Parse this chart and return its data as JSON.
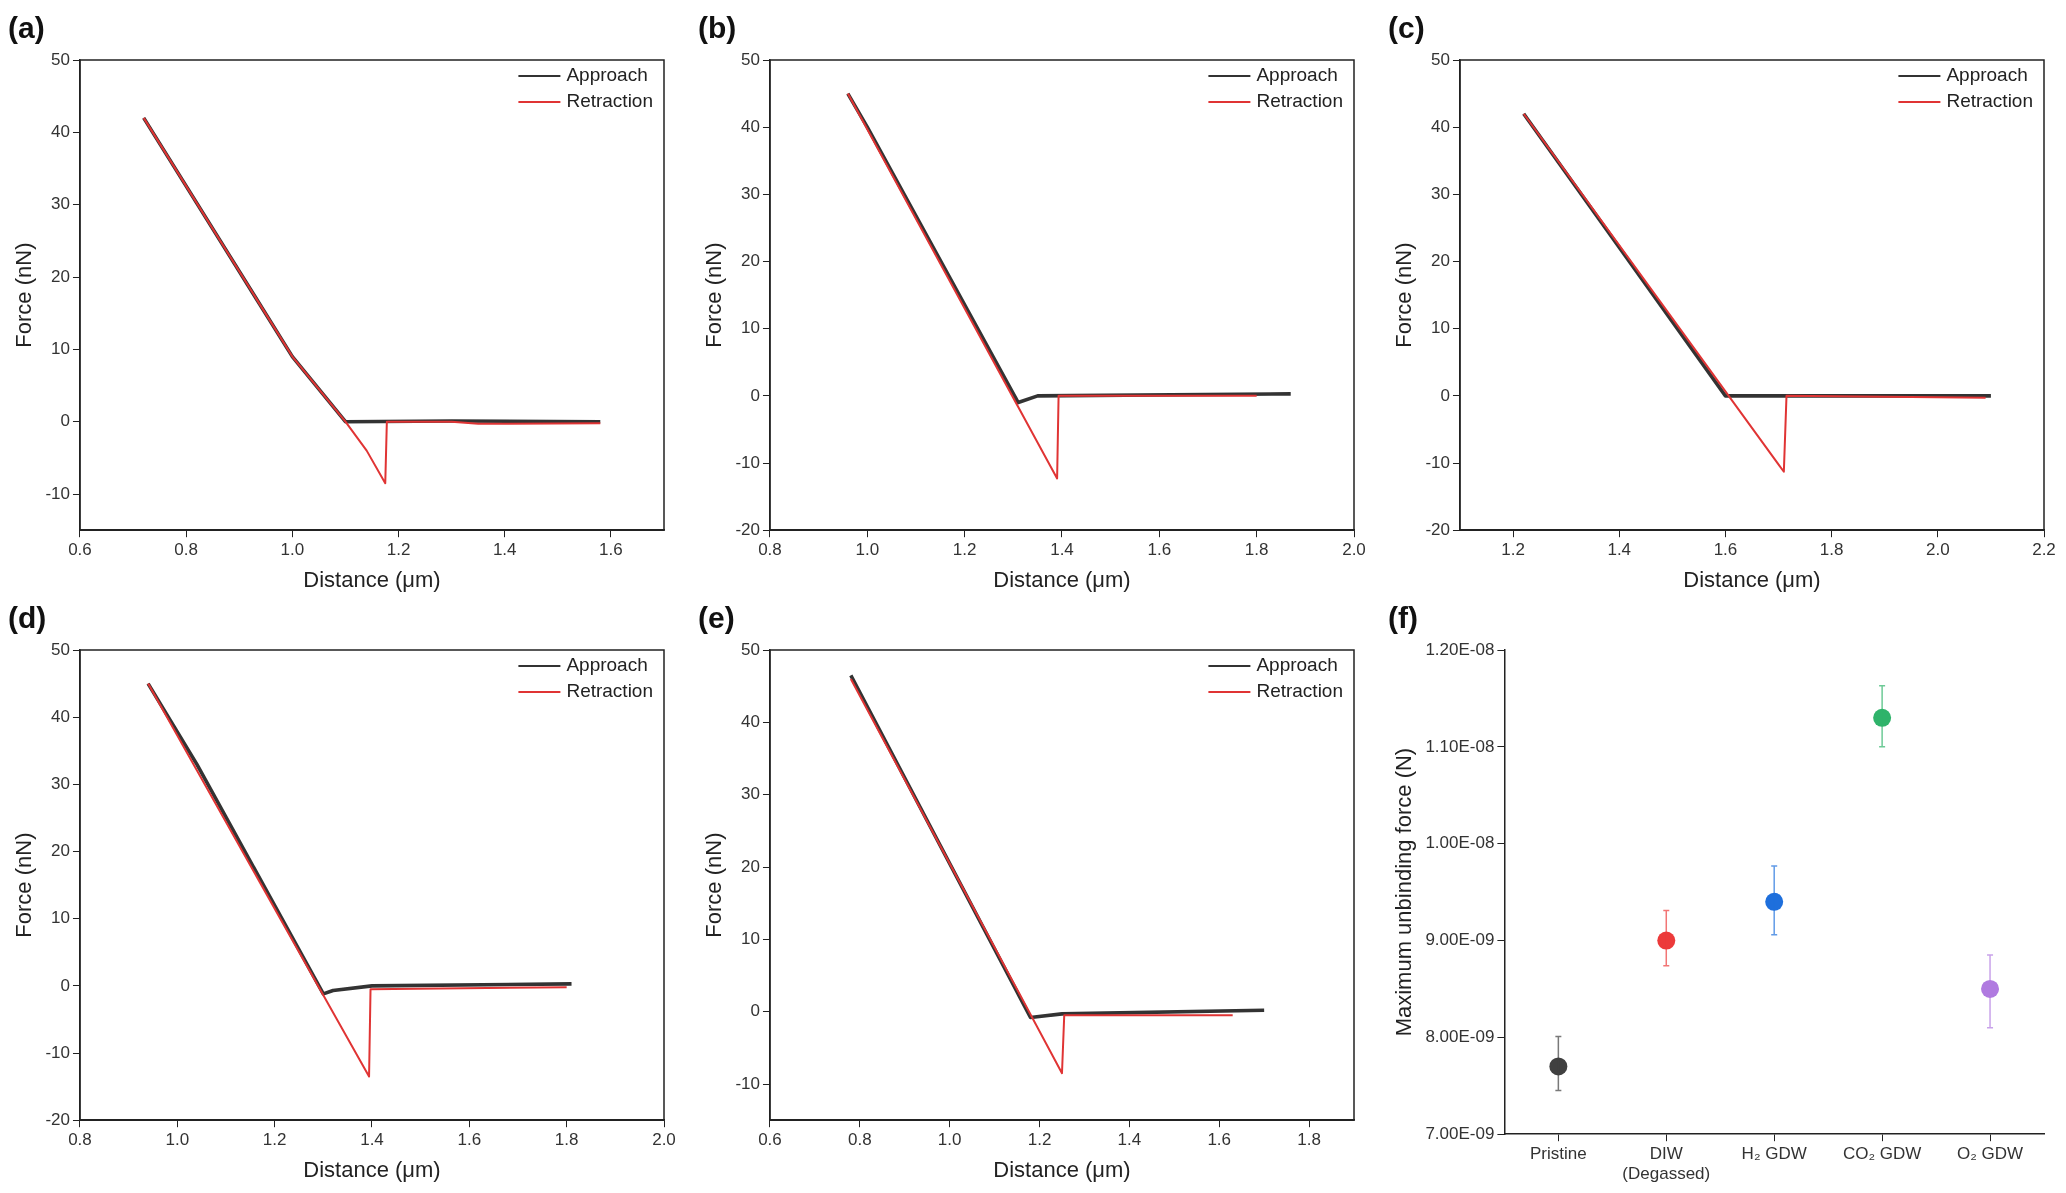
{
  "chart_data": [
    {
      "type": "line",
      "title": "(a)",
      "xlabel": "Distance (μm)",
      "ylabel": "Force (nN)",
      "xlim": [
        0.6,
        1.7
      ],
      "xticks": [
        0.6,
        {
          "value": 0.8,
          "label": "0.8"
        },
        {
          "value": 1,
          "label": "1.0"
        },
        {
          "value": 1.2,
          "label": "1.2"
        },
        {
          "value": 1.4,
          "label": "1.4"
        },
        {
          "value": 1.6,
          "label": "1.6"
        }
      ],
      "ylim": [
        -15,
        50
      ],
      "yticks": [
        -10,
        0,
        10,
        20,
        30,
        40,
        50
      ],
      "legend": "top right",
      "marker": "none",
      "line_style": "solid",
      "series": [
        {
          "name": "Approach",
          "color": "#333333",
          "x": [
            0.72,
            1.0,
            1.1,
            1.3,
            1.58
          ],
          "values": [
            42,
            9,
            0,
            0.1,
            0
          ]
        },
        {
          "name": "Retraction",
          "color": "#e03434",
          "x": [
            0.72,
            1.0,
            1.1,
            1.14,
            1.175,
            1.178,
            1.3,
            1.35,
            1.58
          ],
          "values": [
            42,
            9,
            0,
            -4,
            -8.5,
            0,
            0,
            -0.3,
            -0.2
          ]
        }
      ]
    },
    {
      "type": "line",
      "title": "(b)",
      "xlabel": "Distance (μm)",
      "ylabel": "Force (nN)",
      "xlim": [
        0.8,
        2.0
      ],
      "xticks": [
        0.8,
        {
          "value": 1,
          "label": "1.0"
        },
        1.2,
        1.4,
        1.6,
        1.8,
        {
          "value": 2,
          "label": "2.0"
        }
      ],
      "ylim": [
        -20,
        50
      ],
      "yticks": [
        -20,
        -10,
        0,
        10,
        20,
        30,
        40,
        50
      ],
      "legend": "top right",
      "marker": "none",
      "line_style": "solid",
      "series": [
        {
          "name": "Approach",
          "color": "#333333",
          "x": [
            0.96,
            1.0,
            1.31,
            1.35,
            1.87
          ],
          "values": [
            45,
            40,
            -1,
            0,
            0.3
          ]
        },
        {
          "name": "Retraction",
          "color": "#e03434",
          "x": [
            0.96,
            1.39,
            1.393,
            1.8
          ],
          "values": [
            45,
            -12.3,
            0,
            0
          ]
        }
      ]
    },
    {
      "type": "line",
      "title": "(c)",
      "xlabel": "Distance (μm)",
      "ylabel": "Force (nN)",
      "xlim": [
        1.1,
        2.2
      ],
      "xticks": [
        1.2,
        1.4,
        1.6,
        1.8,
        {
          "value": 2,
          "label": "2.0"
        },
        2.2
      ],
      "ylim": [
        -20,
        50
      ],
      "yticks": [
        -20,
        -10,
        0,
        10,
        20,
        30,
        40,
        50
      ],
      "legend": "top right",
      "marker": "none",
      "line_style": "solid",
      "series": [
        {
          "name": "Approach",
          "color": "#333333",
          "x": [
            1.22,
            1.6,
            2.1
          ],
          "values": [
            42,
            0,
            0
          ]
        },
        {
          "name": "Retraction",
          "color": "#e03434",
          "x": [
            1.22,
            1.71,
            1.715,
            2.09
          ],
          "values": [
            42,
            -11.3,
            0,
            -0.3
          ]
        }
      ]
    },
    {
      "type": "line",
      "title": "(d)",
      "xlabel": "Distance (μm)",
      "ylabel": "Force (nN)",
      "xlim": [
        0.8,
        2.0
      ],
      "xticks": [
        0.8,
        {
          "value": 1,
          "label": "1.0"
        },
        1.2,
        1.4,
        1.6,
        1.8,
        {
          "value": 2,
          "label": "2.0"
        }
      ],
      "ylim": [
        -20,
        50
      ],
      "yticks": [
        -20,
        -10,
        0,
        10,
        20,
        30,
        40,
        50
      ],
      "legend": "top right",
      "marker": "none",
      "line_style": "solid",
      "series": [
        {
          "name": "Approach",
          "color": "#333333",
          "x": [
            0.94,
            1.04,
            1.3,
            1.32,
            1.4,
            1.81
          ],
          "values": [
            45,
            33,
            -1.2,
            -0.7,
            0,
            0.3
          ]
        },
        {
          "name": "Retraction",
          "color": "#e03434",
          "x": [
            0.94,
            1.394,
            1.397,
            1.8
          ],
          "values": [
            45,
            -13.5,
            -0.5,
            -0.2
          ]
        }
      ]
    },
    {
      "type": "line",
      "title": "(e)",
      "xlabel": "Distance (μm)",
      "ylabel": "Force (nN)",
      "xlim": [
        0.6,
        1.9
      ],
      "xticks": [
        0.6,
        0.8,
        {
          "value": 1,
          "label": "1.0"
        },
        1.2,
        1.4,
        1.6,
        1.8
      ],
      "ylim": [
        -15,
        50
      ],
      "yticks": [
        -10,
        0,
        10,
        20,
        30,
        40,
        50
      ],
      "legend": "top right",
      "marker": "none",
      "line_style": "solid",
      "series": [
        {
          "name": "Approach",
          "color": "#333333",
          "x": [
            0.78,
            1.18,
            1.25,
            1.7
          ],
          "values": [
            46.5,
            -0.8,
            -0.3,
            0.2
          ]
        },
        {
          "name": "Retraction",
          "color": "#e03434",
          "x": [
            0.78,
            1.25,
            1.255,
            1.63
          ],
          "values": [
            46,
            -8.5,
            -0.5,
            -0.5
          ]
        }
      ]
    },
    {
      "type": "scatter",
      "title": "(f)",
      "ylabel": "Maximum unbinding force (N)",
      "categories": [
        "Pristine",
        "DIW\n(Degassed)",
        "H₂ GDW",
        "CO₂ GDW",
        "O₂ GDW"
      ],
      "ylim": [
        7e-09,
        1.2e-08
      ],
      "yticks": [
        {
          "value": 7e-09,
          "label": "7.00E-09"
        },
        {
          "value": 8e-09,
          "label": "8.00E-09"
        },
        {
          "value": 9e-09,
          "label": "9.00E-09"
        },
        {
          "value": 1e-08,
          "label": "1.00E-08"
        },
        {
          "value": 1.1e-08,
          "label": "1.10E-08"
        },
        {
          "value": 1.2e-08,
          "label": "1.20E-08"
        }
      ],
      "marker": "circle",
      "series": [
        {
          "colors": [
            "#404040",
            "#ec3a3a",
            "#1e6fdc",
            "#2fb36a",
            "#b07ae0"
          ],
          "values": [
            7.7e-09,
            9e-09,
            9.4e-09,
            1.13e-08,
            8.5e-09
          ],
          "errors": [
            [
              7.45e-09,
              8.01e-09
            ],
            [
              8.74e-09,
              9.31e-09
            ],
            [
              9.06e-09,
              9.77e-09
            ],
            [
              1.1e-08,
              1.163e-08
            ],
            [
              8.1e-09,
              8.85e-09
            ]
          ]
        }
      ]
    }
  ]
}
